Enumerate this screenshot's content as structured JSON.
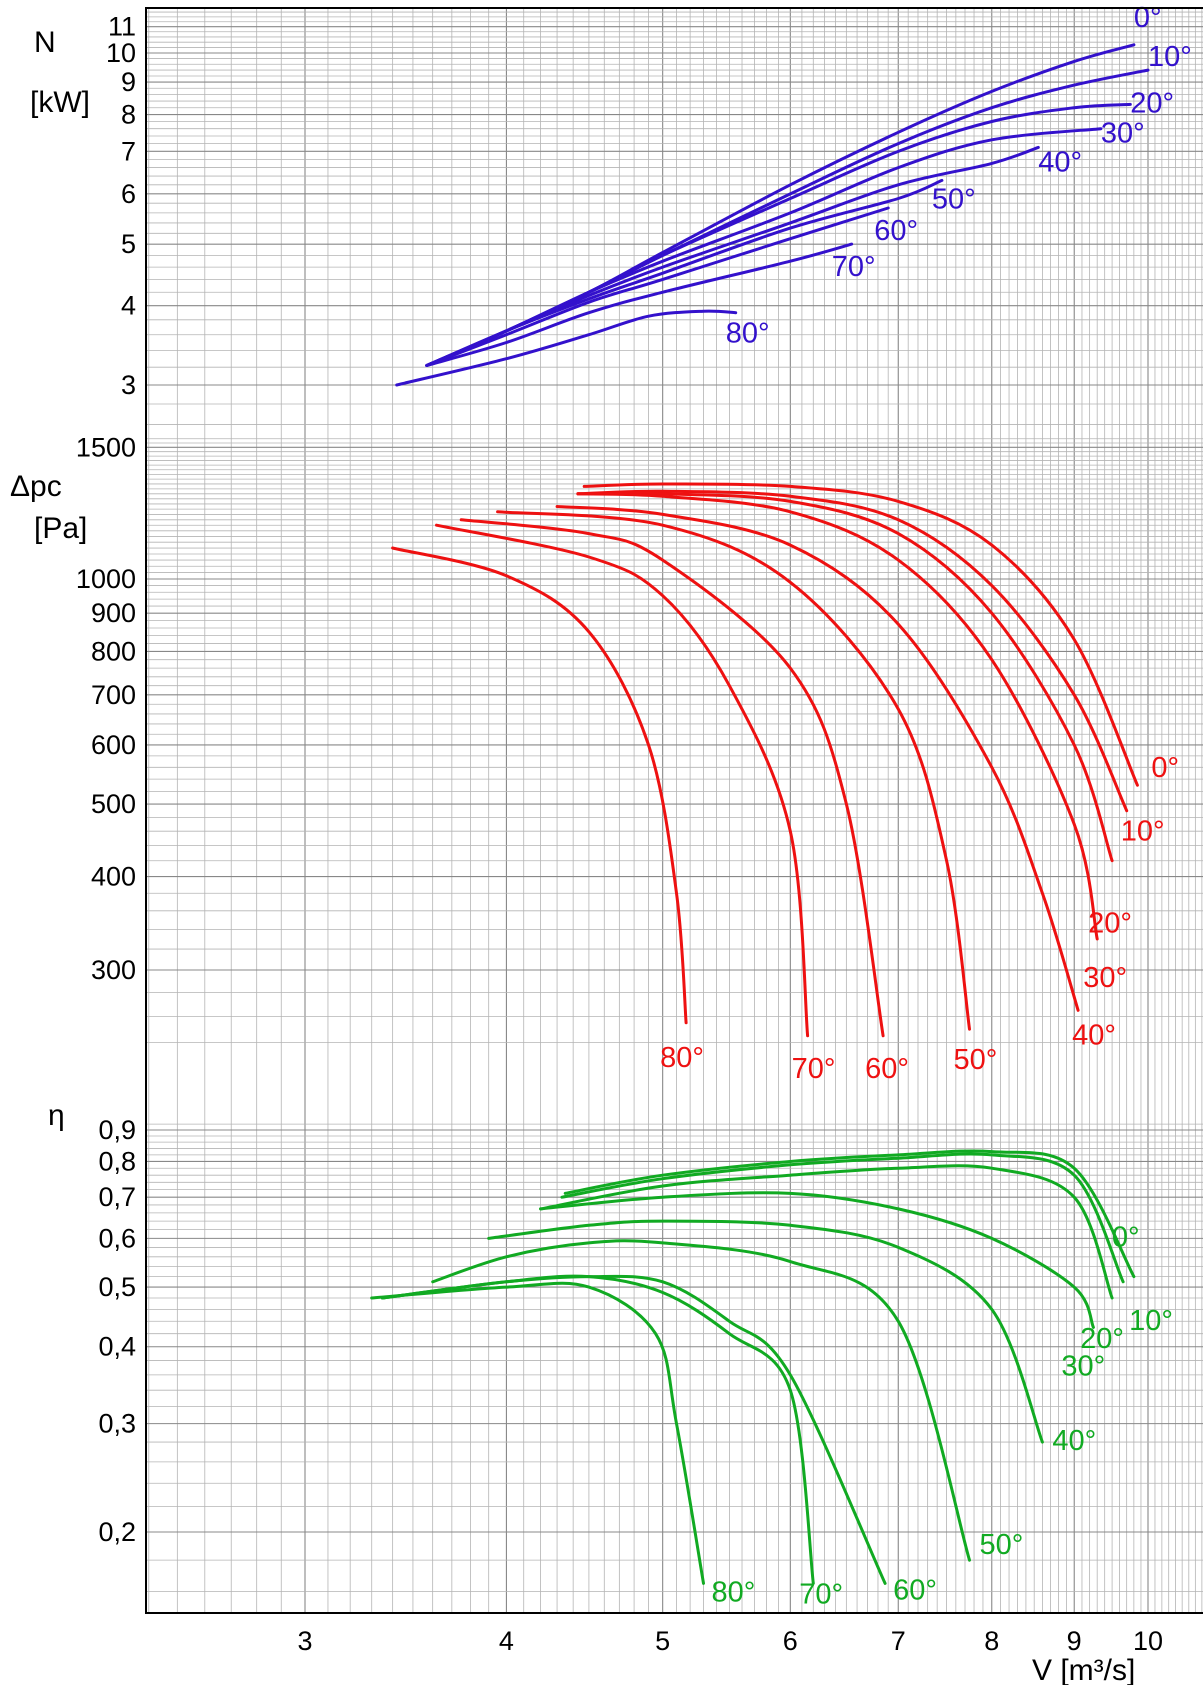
{
  "chart_data": [
    {
      "type": "line",
      "panel": "power",
      "ylabel_symbol": "N",
      "ylabel_unit": "[kW]",
      "yscale": "log",
      "xscale": "log",
      "ylim": [
        2.6,
        11.8
      ],
      "yticks": [
        "3",
        "4",
        "5",
        "6",
        "7",
        "8",
        "9",
        "10",
        "11"
      ],
      "color": "#3311cc",
      "series": [
        {
          "name": "0°",
          "x": [
            3.57,
            4.0,
            4.5,
            5.0,
            6.0,
            7.0,
            8.0,
            9.0,
            9.8
          ],
          "y": [
            3.22,
            3.65,
            4.2,
            4.85,
            6.2,
            7.5,
            8.7,
            9.7,
            10.3
          ]
        },
        {
          "name": "10°",
          "x": [
            3.57,
            4.0,
            4.5,
            5.0,
            6.0,
            7.0,
            8.0,
            9.0,
            10.0
          ],
          "y": [
            3.22,
            3.65,
            4.2,
            4.8,
            6.0,
            7.2,
            8.2,
            8.9,
            9.4
          ]
        },
        {
          "name": "20°",
          "x": [
            3.57,
            4.0,
            4.5,
            5.0,
            6.0,
            7.0,
            8.0,
            9.0,
            9.75
          ],
          "y": [
            3.22,
            3.65,
            4.2,
            4.8,
            5.9,
            7.0,
            7.8,
            8.2,
            8.3
          ]
        },
        {
          "name": "30°",
          "x": [
            3.57,
            4.0,
            4.5,
            5.0,
            6.0,
            7.0,
            8.0,
            9.35
          ],
          "y": [
            3.22,
            3.65,
            4.2,
            4.7,
            5.6,
            6.6,
            7.3,
            7.6
          ]
        },
        {
          "name": "40°",
          "x": [
            3.57,
            4.0,
            4.5,
            5.0,
            6.0,
            7.0,
            8.0,
            8.55
          ],
          "y": [
            3.22,
            3.65,
            4.15,
            4.6,
            5.4,
            6.2,
            6.7,
            7.1
          ]
        },
        {
          "name": "50°",
          "x": [
            3.57,
            4.0,
            4.5,
            5.0,
            6.0,
            7.0,
            7.45
          ],
          "y": [
            3.22,
            3.65,
            4.1,
            4.5,
            5.3,
            5.9,
            6.3
          ]
        },
        {
          "name": "60°",
          "x": [
            3.57,
            4.0,
            4.5,
            5.0,
            6.0,
            6.9
          ],
          "y": [
            3.22,
            3.6,
            4.05,
            4.4,
            5.1,
            5.7
          ]
        },
        {
          "name": "70°",
          "x": [
            3.57,
            4.0,
            4.5,
            5.0,
            6.0,
            6.55
          ],
          "y": [
            3.22,
            3.5,
            3.9,
            4.2,
            4.7,
            5.0
          ]
        },
        {
          "name": "80°",
          "x": [
            3.42,
            4.0,
            4.5,
            4.9,
            5.3,
            5.55
          ],
          "y": [
            3.0,
            3.3,
            3.6,
            3.85,
            3.92,
            3.9
          ]
        }
      ]
    },
    {
      "type": "line",
      "panel": "pressure",
      "ylabel_symbol": "Δpc",
      "ylabel_unit": "[Pa]",
      "yscale": "log",
      "xscale": "log",
      "ylim": [
        236,
        1550
      ],
      "yticks": [
        "300",
        "400",
        "500",
        "600",
        "700",
        "800",
        "900",
        "1000",
        "1500"
      ],
      "color": "#ee1111",
      "series": [
        {
          "name": "0°",
          "x": [
            4.47,
            5.0,
            6.0,
            7.0,
            8.0,
            9.0,
            9.85
          ],
          "y": [
            1330,
            1340,
            1330,
            1270,
            1110,
            830,
            530
          ]
        },
        {
          "name": "10°",
          "x": [
            4.43,
            5.0,
            6.0,
            7.0,
            8.0,
            9.0,
            9.7
          ],
          "y": [
            1300,
            1310,
            1290,
            1200,
            980,
            700,
            490
          ]
        },
        {
          "name": "20°",
          "x": [
            4.43,
            5.0,
            6.0,
            7.0,
            8.0,
            9.0,
            9.5
          ],
          "y": [
            1300,
            1300,
            1270,
            1150,
            900,
            600,
            420
          ]
        },
        {
          "name": "30°",
          "x": [
            4.43,
            5.0,
            6.0,
            7.0,
            8.0,
            9.0,
            9.3
          ],
          "y": [
            1300,
            1290,
            1230,
            1060,
            780,
            470,
            330
          ]
        },
        {
          "name": "40°",
          "x": [
            4.3,
            5.0,
            6.0,
            7.0,
            8.0,
            8.6,
            9.05
          ],
          "y": [
            1250,
            1220,
            1110,
            870,
            560,
            380,
            265
          ]
        },
        {
          "name": "50°",
          "x": [
            3.95,
            5.0,
            6.0,
            7.0,
            7.5,
            7.75
          ],
          "y": [
            1230,
            1180,
            990,
            670,
            420,
            250
          ]
        },
        {
          "name": "60°",
          "x": [
            3.75,
            4.5,
            5.0,
            6.0,
            6.5,
            6.85
          ],
          "y": [
            1200,
            1150,
            1060,
            760,
            500,
            245
          ]
        },
        {
          "name": "70°",
          "x": [
            3.62,
            4.5,
            5.0,
            5.5,
            6.0,
            6.15
          ],
          "y": [
            1180,
            1070,
            950,
            720,
            460,
            245
          ]
        },
        {
          "name": "80°",
          "x": [
            3.4,
            4.0,
            4.5,
            4.9,
            5.1,
            5.17
          ],
          "y": [
            1100,
            1010,
            850,
            600,
            380,
            255
          ]
        }
      ]
    },
    {
      "type": "line",
      "panel": "efficiency",
      "ylabel_symbol": "η",
      "yscale": "log",
      "xscale": "log",
      "ylim": [
        0.158,
        0.94
      ],
      "yticks": [
        "0,2",
        "0,3",
        "0,4",
        "0,5",
        "0,6",
        "0,7",
        "0,8",
        "0,9"
      ],
      "color": "#11aa22",
      "xlabel": "V [m³/s]",
      "xticks": [
        "3",
        "4",
        "5",
        "6",
        "7",
        "8",
        "9",
        "10"
      ],
      "xlim": [
        2.5,
        11.2
      ],
      "series": [
        {
          "name": "0°",
          "x": [
            4.35,
            5.0,
            6.0,
            7.0,
            8.0,
            9.0,
            9.8
          ],
          "y": [
            0.71,
            0.76,
            0.8,
            0.82,
            0.83,
            0.78,
            0.52
          ]
        },
        {
          "name": "10°",
          "x": [
            4.33,
            5.0,
            6.0,
            7.0,
            8.0,
            9.0,
            9.65
          ],
          "y": [
            0.7,
            0.75,
            0.79,
            0.81,
            0.82,
            0.76,
            0.51
          ]
        },
        {
          "name": "20°",
          "x": [
            4.2,
            5.0,
            6.0,
            7.0,
            8.0,
            9.0,
            9.5
          ],
          "y": [
            0.67,
            0.73,
            0.76,
            0.78,
            0.78,
            0.7,
            0.48
          ]
        },
        {
          "name": "30°",
          "x": [
            4.2,
            5.0,
            6.0,
            7.0,
            8.0,
            9.0,
            9.25
          ],
          "y": [
            0.67,
            0.7,
            0.71,
            0.67,
            0.6,
            0.5,
            0.43
          ]
        },
        {
          "name": "40°",
          "x": [
            3.9,
            4.5,
            5.0,
            6.0,
            7.0,
            8.0,
            8.6
          ],
          "y": [
            0.6,
            0.63,
            0.64,
            0.63,
            0.58,
            0.46,
            0.28
          ]
        },
        {
          "name": "50°",
          "x": [
            3.6,
            4.0,
            4.5,
            5.0,
            6.0,
            7.0,
            7.75
          ],
          "y": [
            0.51,
            0.56,
            0.59,
            0.59,
            0.55,
            0.44,
            0.18
          ]
        },
        {
          "name": "60°",
          "x": [
            3.35,
            4.0,
            4.5,
            5.0,
            5.5,
            6.0,
            6.87
          ],
          "y": [
            0.48,
            0.51,
            0.52,
            0.51,
            0.44,
            0.36,
            0.165
          ]
        },
        {
          "name": "70°",
          "x": [
            3.35,
            4.0,
            4.5,
            5.0,
            5.5,
            6.0,
            6.2
          ],
          "y": [
            0.48,
            0.51,
            0.52,
            0.49,
            0.42,
            0.34,
            0.165
          ]
        },
        {
          "name": "80°",
          "x": [
            3.3,
            4.0,
            4.5,
            4.95,
            5.1,
            5.3
          ],
          "y": [
            0.48,
            0.5,
            0.5,
            0.42,
            0.3,
            0.165
          ]
        }
      ]
    }
  ]
}
